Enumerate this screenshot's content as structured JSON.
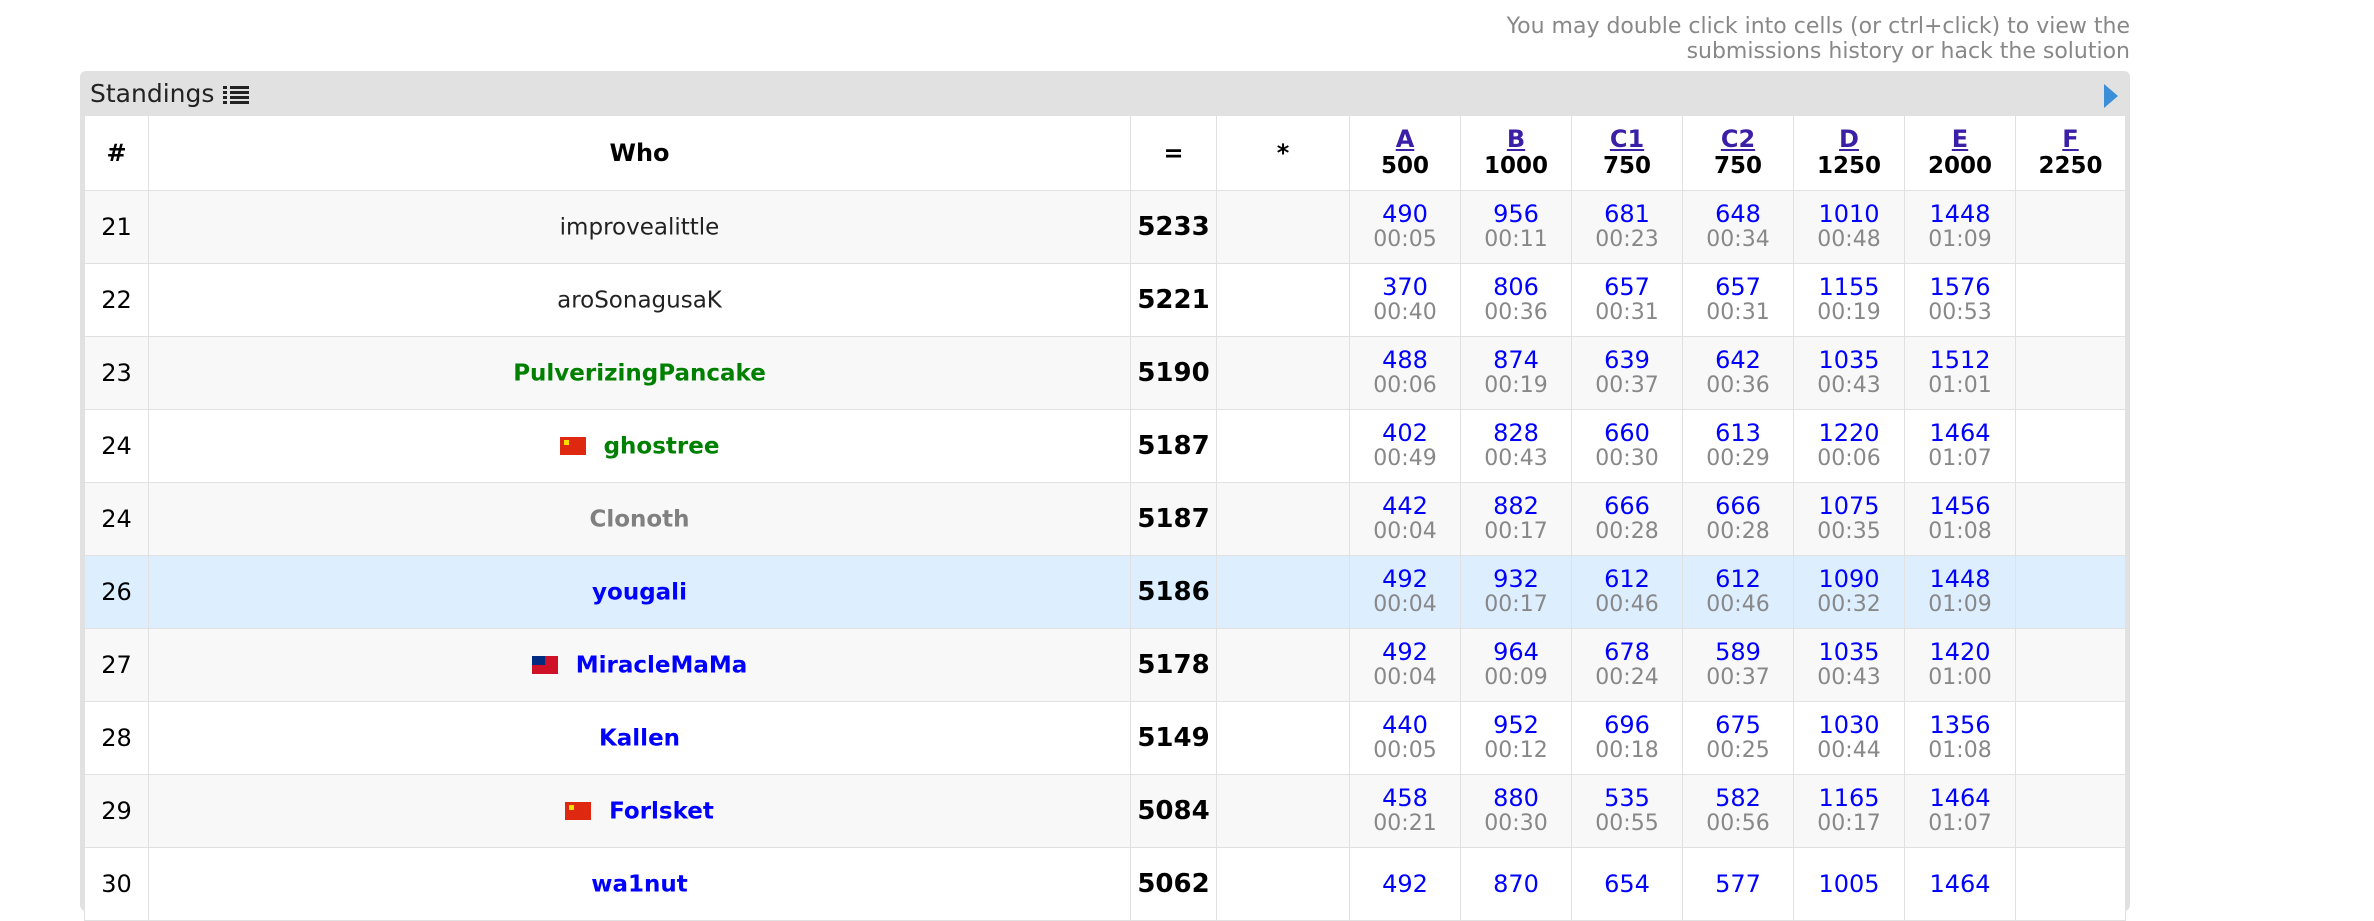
{
  "hint": "You may double click into cells (or ctrl+click) to view the submissions history or hack the solution",
  "panel": {
    "title": "Standings"
  },
  "header": {
    "rank": "#",
    "who": "Who",
    "score": "=",
    "hacks": "*"
  },
  "problems": [
    {
      "letter": "A",
      "points": "500"
    },
    {
      "letter": "B",
      "points": "1000"
    },
    {
      "letter": "C1",
      "points": "750"
    },
    {
      "letter": "C2",
      "points": "750"
    },
    {
      "letter": "D",
      "points": "1250"
    },
    {
      "letter": "E",
      "points": "2000"
    },
    {
      "letter": "F",
      "points": "2250"
    }
  ],
  "rows": [
    {
      "rank": "21",
      "flag": "",
      "name": "improvealittle",
      "color": "black",
      "score": "5233",
      "hacks": "",
      "cells": [
        {
          "p": "490",
          "t": "00:05"
        },
        {
          "p": "956",
          "t": "00:11"
        },
        {
          "p": "681",
          "t": "00:23"
        },
        {
          "p": "648",
          "t": "00:34"
        },
        {
          "p": "1010",
          "t": "00:48"
        },
        {
          "p": "1448",
          "t": "01:09"
        },
        {
          "p": "",
          "t": ""
        }
      ]
    },
    {
      "rank": "22",
      "flag": "",
      "name": "aroSonagusaK",
      "color": "black",
      "score": "5221",
      "hacks": "",
      "cells": [
        {
          "p": "370",
          "t": "00:40"
        },
        {
          "p": "806",
          "t": "00:36"
        },
        {
          "p": "657",
          "t": "00:31"
        },
        {
          "p": "657",
          "t": "00:31"
        },
        {
          "p": "1155",
          "t": "00:19"
        },
        {
          "p": "1576",
          "t": "00:53"
        },
        {
          "p": "",
          "t": ""
        }
      ]
    },
    {
      "rank": "23",
      "flag": "",
      "name": "PulverizingPancake",
      "color": "green",
      "score": "5190",
      "hacks": "",
      "cells": [
        {
          "p": "488",
          "t": "00:06"
        },
        {
          "p": "874",
          "t": "00:19"
        },
        {
          "p": "639",
          "t": "00:37"
        },
        {
          "p": "642",
          "t": "00:36"
        },
        {
          "p": "1035",
          "t": "00:43"
        },
        {
          "p": "1512",
          "t": "01:01"
        },
        {
          "p": "",
          "t": ""
        }
      ]
    },
    {
      "rank": "24",
      "flag": "cn",
      "name": "ghostree",
      "color": "green",
      "score": "5187",
      "hacks": "",
      "cells": [
        {
          "p": "402",
          "t": "00:49"
        },
        {
          "p": "828",
          "t": "00:43"
        },
        {
          "p": "660",
          "t": "00:30"
        },
        {
          "p": "613",
          "t": "00:29"
        },
        {
          "p": "1220",
          "t": "00:06"
        },
        {
          "p": "1464",
          "t": "01:07"
        },
        {
          "p": "",
          "t": ""
        }
      ]
    },
    {
      "rank": "24",
      "flag": "",
      "name": "Clonoth",
      "color": "gray",
      "score": "5187",
      "hacks": "",
      "cells": [
        {
          "p": "442",
          "t": "00:04"
        },
        {
          "p": "882",
          "t": "00:17"
        },
        {
          "p": "666",
          "t": "00:28"
        },
        {
          "p": "666",
          "t": "00:28"
        },
        {
          "p": "1075",
          "t": "00:35"
        },
        {
          "p": "1456",
          "t": "01:08"
        },
        {
          "p": "",
          "t": ""
        }
      ]
    },
    {
      "rank": "26",
      "flag": "",
      "name": "yougali",
      "color": "blue",
      "score": "5186",
      "hacks": "",
      "highlight": true,
      "cells": [
        {
          "p": "492",
          "t": "00:04"
        },
        {
          "p": "932",
          "t": "00:17"
        },
        {
          "p": "612",
          "t": "00:46"
        },
        {
          "p": "612",
          "t": "00:46"
        },
        {
          "p": "1090",
          "t": "00:32"
        },
        {
          "p": "1448",
          "t": "01:09"
        },
        {
          "p": "",
          "t": ""
        }
      ]
    },
    {
      "rank": "27",
      "flag": "ws",
      "name": "MiracleMaMa",
      "color": "blue",
      "score": "5178",
      "hacks": "",
      "cells": [
        {
          "p": "492",
          "t": "00:04"
        },
        {
          "p": "964",
          "t": "00:09"
        },
        {
          "p": "678",
          "t": "00:24"
        },
        {
          "p": "589",
          "t": "00:37"
        },
        {
          "p": "1035",
          "t": "00:43"
        },
        {
          "p": "1420",
          "t": "01:00"
        },
        {
          "p": "",
          "t": ""
        }
      ]
    },
    {
      "rank": "28",
      "flag": "",
      "name": "Kallen",
      "color": "blue",
      "score": "5149",
      "hacks": "",
      "cells": [
        {
          "p": "440",
          "t": "00:05"
        },
        {
          "p": "952",
          "t": "00:12"
        },
        {
          "p": "696",
          "t": "00:18"
        },
        {
          "p": "675",
          "t": "00:25"
        },
        {
          "p": "1030",
          "t": "00:44"
        },
        {
          "p": "1356",
          "t": "01:08"
        },
        {
          "p": "",
          "t": ""
        }
      ]
    },
    {
      "rank": "29",
      "flag": "cn",
      "name": "Forlsket",
      "color": "blue",
      "score": "5084",
      "hacks": "",
      "cells": [
        {
          "p": "458",
          "t": "00:21"
        },
        {
          "p": "880",
          "t": "00:30"
        },
        {
          "p": "535",
          "t": "00:55"
        },
        {
          "p": "582",
          "t": "00:56"
        },
        {
          "p": "1165",
          "t": "00:17"
        },
        {
          "p": "1464",
          "t": "01:07"
        },
        {
          "p": "",
          "t": ""
        }
      ]
    },
    {
      "rank": "30",
      "flag": "",
      "name": "wa1nut",
      "color": "blue",
      "score": "5062",
      "hacks": "",
      "cells": [
        {
          "p": "492",
          "t": ""
        },
        {
          "p": "870",
          "t": ""
        },
        {
          "p": "654",
          "t": ""
        },
        {
          "p": "577",
          "t": ""
        },
        {
          "p": "1005",
          "t": ""
        },
        {
          "p": "1464",
          "t": ""
        },
        {
          "p": "",
          "t": ""
        }
      ]
    }
  ]
}
